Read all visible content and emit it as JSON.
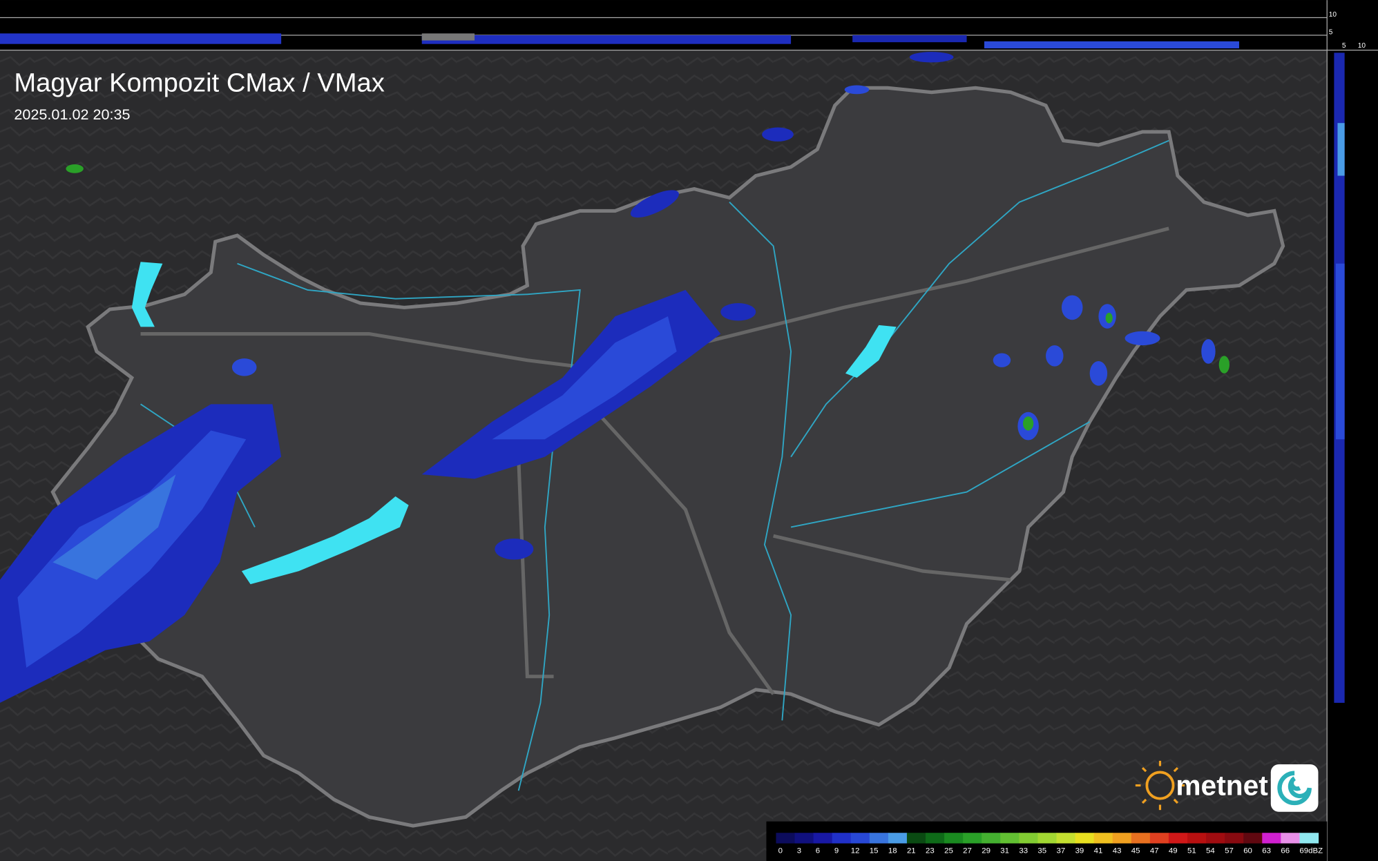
{
  "header": {
    "title": "Magyar Kompozit CMax / VMax",
    "timestamp": "2025.01.02 20:35"
  },
  "logo": {
    "text": "metnet"
  },
  "profile_axes": {
    "vertical_labels": [
      "10",
      "5"
    ],
    "horizontal_labels": [
      "5",
      "10"
    ]
  },
  "color_scale": {
    "unit": "dBZ",
    "levels": [
      {
        "label": "0",
        "color": "#0c0c5c"
      },
      {
        "label": "3",
        "color": "#10107e"
      },
      {
        "label": "6",
        "color": "#1818a4"
      },
      {
        "label": "9",
        "color": "#2030c8"
      },
      {
        "label": "12",
        "color": "#2848d6"
      },
      {
        "label": "15",
        "color": "#3874de"
      },
      {
        "label": "18",
        "color": "#4a9ce6"
      },
      {
        "label": "21",
        "color": "#0a4a12"
      },
      {
        "label": "23",
        "color": "#0e6a18"
      },
      {
        "label": "25",
        "color": "#1a8a20"
      },
      {
        "label": "27",
        "color": "#2aa028"
      },
      {
        "label": "29",
        "color": "#44b030"
      },
      {
        "label": "31",
        "color": "#62c032"
      },
      {
        "label": "33",
        "color": "#82cc32"
      },
      {
        "label": "35",
        "color": "#a2d832"
      },
      {
        "label": "37",
        "color": "#c4e030"
      },
      {
        "label": "39",
        "color": "#e8e020"
      },
      {
        "label": "41",
        "color": "#f0c020"
      },
      {
        "label": "43",
        "color": "#f0a020"
      },
      {
        "label": "45",
        "color": "#e87020"
      },
      {
        "label": "47",
        "color": "#e04020"
      },
      {
        "label": "49",
        "color": "#d01818"
      },
      {
        "label": "51",
        "color": "#b81010"
      },
      {
        "label": "54",
        "color": "#a00c10"
      },
      {
        "label": "57",
        "color": "#880a10"
      },
      {
        "label": "60",
        "color": "#600810"
      },
      {
        "label": "63",
        "color": "#d020d0"
      },
      {
        "label": "66",
        "color": "#e890e8"
      },
      {
        "label": "69",
        "color": "#90e8f0"
      }
    ]
  }
}
